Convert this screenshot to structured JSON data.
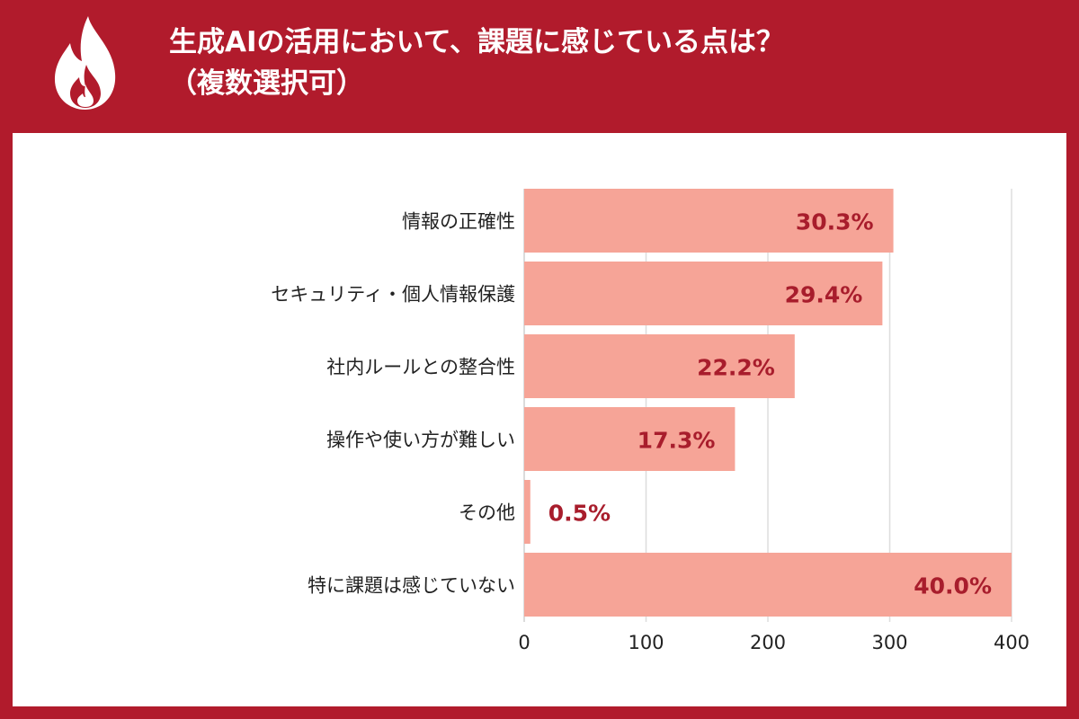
{
  "header": {
    "title_line1": "生成AIの活用において、課題に感じている点は？",
    "title_line2": "（複数選択可）",
    "icon": "flame-icon"
  },
  "colors": {
    "frame": "#b11b2c",
    "bar": "#f6a497",
    "value_text": "#a81d2c",
    "grid": "#dddddd"
  },
  "chart_data": {
    "type": "bar",
    "orientation": "horizontal",
    "title": "生成AIの活用において、課題に感じている点は？（複数選択可）",
    "categories": [
      "情報の正確性",
      "セキュリティ・個人情報保護",
      "社内ルールとの整合性",
      "操作や使い方が難しい",
      "その他",
      "特に課題は感じていない"
    ],
    "values": [
      303,
      294,
      222,
      173,
      5,
      400
    ],
    "value_labels": [
      "30.3%",
      "29.4%",
      "22.2%",
      "17.3%",
      "0.5%",
      "40.0%"
    ],
    "xlim": [
      0,
      400
    ],
    "xticks": [
      0,
      100,
      200,
      300,
      400
    ],
    "xtick_labels": [
      "0",
      "100",
      "200",
      "300",
      "400"
    ],
    "grid": true,
    "legend": "none",
    "xlabel": "",
    "ylabel": ""
  }
}
